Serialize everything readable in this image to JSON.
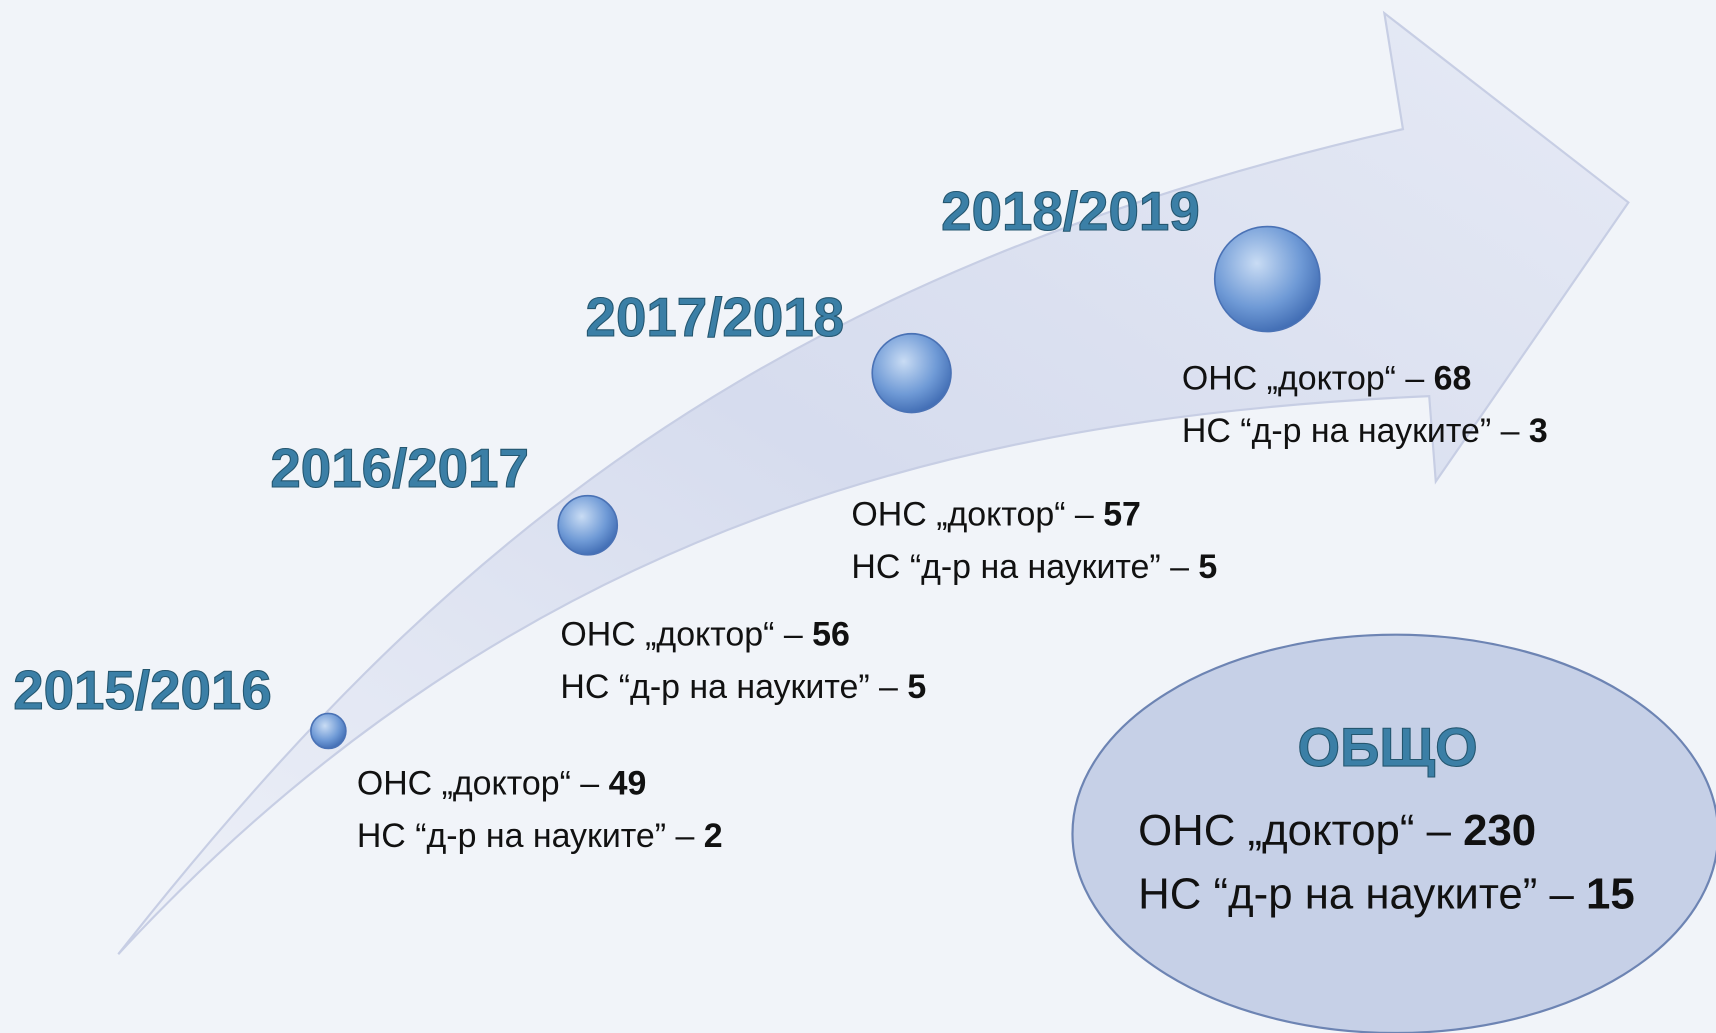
{
  "periods": [
    {
      "year": "2015/2016",
      "doctor_label": "ОНС „доктор“ –",
      "doctor_value": 49,
      "science_label": "НС “д-р на науките” –",
      "science_value": 2
    },
    {
      "year": "2016/2017",
      "doctor_label": "ОНС „доктор“ –",
      "doctor_value": 56,
      "science_label": "НС “д-р на науките” –",
      "science_value": 5
    },
    {
      "year": "2017/2018",
      "doctor_label": "ОНС „доктор“ –",
      "doctor_value": 57,
      "science_label": "НС “д-р на науките” –",
      "science_value": 5
    },
    {
      "year": "2018/2019",
      "doctor_label": "ОНС „доктор“ –",
      "doctor_value": 68,
      "science_label": "НС “д-р на науките” –",
      "science_value": 3
    }
  ],
  "total": {
    "title": "ОБЩО",
    "doctor_label": "ОНС „доктор“ –",
    "doctor_value": 230,
    "science_label": "НС “д-р на науките” –",
    "science_value": 15
  }
}
